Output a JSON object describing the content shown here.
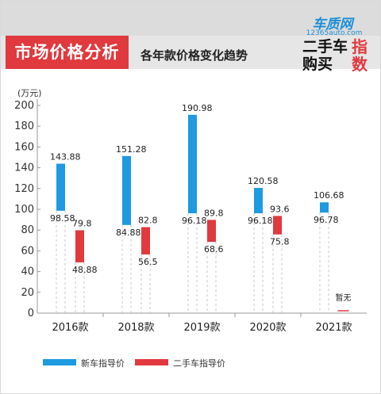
{
  "header": {
    "title": "市场价格分析",
    "subtitle": "各年款价格变化趋势"
  },
  "logo": {
    "brand": "车质网",
    "url_text": "12365auto.com",
    "line1": "二手车",
    "line2": "购买",
    "accent1": "指",
    "accent2": "数"
  },
  "colors": {
    "new_car": "#1e9ae0",
    "used_car": "#e0393e",
    "accent": "#e0393e"
  },
  "chart_data": {
    "type": "bar",
    "ylabel": "(万元)",
    "ylim": [
      0,
      200
    ],
    "yticks": [
      0,
      20,
      40,
      60,
      80,
      100,
      120,
      140,
      160,
      180,
      200
    ],
    "categories": [
      "2016款",
      "2018款",
      "2019款",
      "2020款",
      "2021款"
    ],
    "series": [
      {
        "name": "新车指导价",
        "ranges": [
          [
            98.58,
            143.88
          ],
          [
            84.88,
            151.28
          ],
          [
            96.18,
            190.98
          ],
          [
            96.18,
            120.58
          ],
          [
            96.78,
            106.68
          ]
        ],
        "high_labels": [
          "143.88",
          "151.28",
          "190.98",
          "120.58",
          "106.68"
        ],
        "low_labels": [
          "98.58",
          "84.88",
          "96.18",
          "96.18",
          "96.78"
        ]
      },
      {
        "name": "二手车指导价",
        "ranges": [
          [
            48.88,
            79.8
          ],
          [
            56.5,
            82.8
          ],
          [
            68.6,
            89.8
          ],
          [
            75.8,
            93.6
          ],
          null
        ],
        "high_labels": [
          "79.8",
          "82.8",
          "89.8",
          "93.6",
          ""
        ],
        "low_labels": [
          "48.88",
          "56.5",
          "68.6",
          "75.8",
          ""
        ]
      }
    ],
    "annotation": "暂无"
  }
}
